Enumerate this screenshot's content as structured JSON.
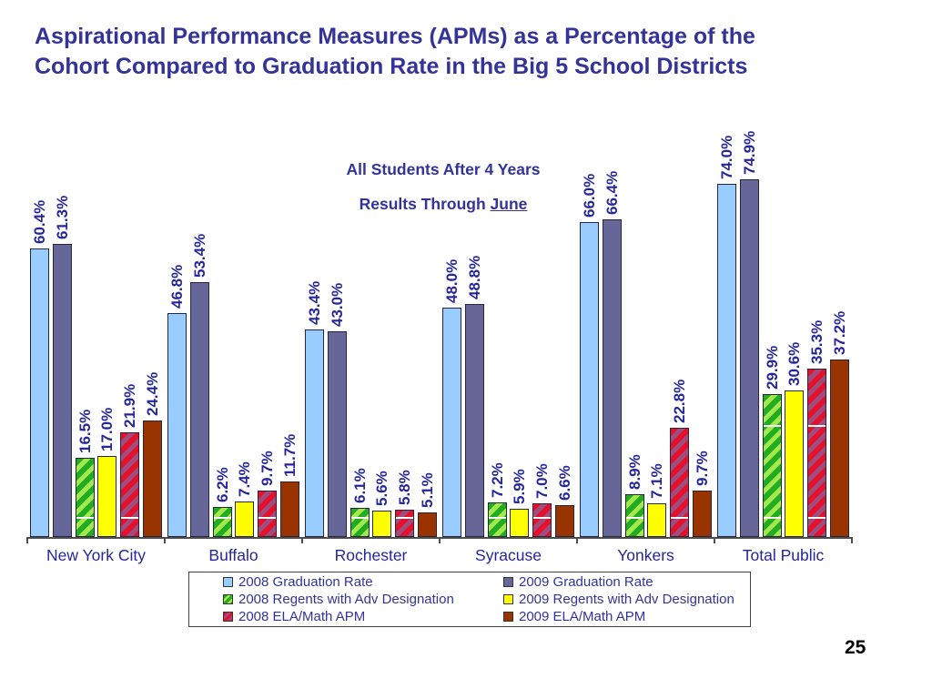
{
  "page": {
    "page_number": "25",
    "background": "#ffffff"
  },
  "title": {
    "line1": "Aspirational Performance Measures (APMs) as a Percentage of the",
    "line2": "Cohort Compared to Graduation Rate in the Big 5 School Districts",
    "color": "#333399"
  },
  "subtitle": {
    "line1": "All Students After 4 Years",
    "line2_prefix": "Results Through ",
    "line2_word": "June"
  },
  "chart_data": {
    "type": "bar",
    "title": "Aspirational Performance Measures (APMs) as a Percentage of the Cohort Compared to Graduation Rate in the Big 5 School Districts",
    "subtitle": "All Students After 4 Years — Results Through June",
    "categories": [
      "New York City",
      "Buffalo",
      "Rochester",
      "Syracuse",
      "Yonkers",
      "Total Public"
    ],
    "series": [
      {
        "name": "2008 Graduation Rate",
        "style": "solid",
        "color": "#99CCFF",
        "values": [
          60.4,
          46.8,
          43.4,
          48.0,
          66.0,
          74.0
        ]
      },
      {
        "name": "2009 Graduation Rate",
        "style": "solid",
        "color": "#666699",
        "values": [
          61.3,
          53.4,
          43.0,
          48.8,
          66.4,
          74.9
        ]
      },
      {
        "name": "2008 Regents with Adv Designation",
        "style": "hatch",
        "color": "#22AC22",
        "hatch_color": "#A3E94E",
        "values": [
          16.5,
          6.2,
          6.1,
          7.2,
          8.9,
          29.9
        ]
      },
      {
        "name": "2009 Regents with Adv Designation",
        "style": "solid",
        "color": "#FFFF00",
        "values": [
          17.0,
          7.4,
          5.6,
          5.9,
          7.1,
          30.6
        ]
      },
      {
        "name": "2008 ELA/Math APM",
        "style": "hatch",
        "color": "#E4102C",
        "hatch_color": "#9E4E7E",
        "values": [
          21.9,
          9.7,
          5.8,
          7.0,
          22.8,
          35.3
        ]
      },
      {
        "name": "2009 ELA/Math APM",
        "style": "solid",
        "color": "#993300",
        "values": [
          24.4,
          11.7,
          5.1,
          6.6,
          9.7,
          37.2
        ]
      }
    ],
    "value_suffix": "%",
    "value_label_color": "#26269B",
    "ylim": [
      0,
      80
    ],
    "grid": false,
    "axis_color": "#4D4D4D",
    "legend_position": "bottom"
  }
}
